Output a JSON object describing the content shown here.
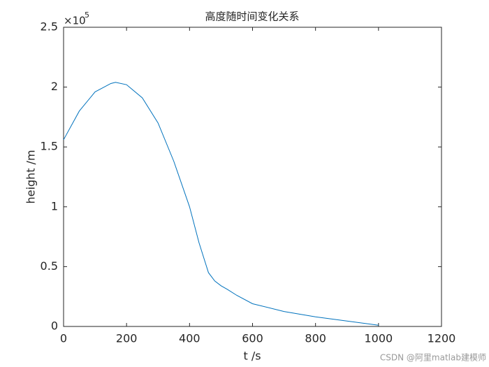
{
  "chart_data": {
    "type": "line",
    "title": "高度随时间变化关系",
    "x_label": "t  /s",
    "y_label": "height  /m",
    "y_multiplier": "×10",
    "y_multiplier_exp": "5",
    "x": [
      0,
      50,
      100,
      150,
      165,
      200,
      250,
      300,
      350,
      400,
      430,
      460,
      480,
      500,
      520,
      550,
      600,
      700,
      800,
      900,
      1000
    ],
    "series": [
      {
        "name": "height",
        "color": "#0072bd",
        "values": [
          1.56,
          1.8,
          1.96,
          2.03,
          2.04,
          2.02,
          1.91,
          1.7,
          1.38,
          1.0,
          0.7,
          0.45,
          0.38,
          0.34,
          0.31,
          0.26,
          0.19,
          0.125,
          0.08,
          0.045,
          0.01
        ]
      }
    ],
    "xlim": [
      0,
      1200
    ],
    "xticks": [
      0,
      200,
      400,
      600,
      800,
      1000,
      1200
    ],
    "ylim": [
      0,
      2.5
    ],
    "yticks": [
      0,
      0.5,
      1,
      1.5,
      2,
      2.5
    ],
    "grid": false,
    "watermark": "CSDN @阿里matlab建模师"
  }
}
